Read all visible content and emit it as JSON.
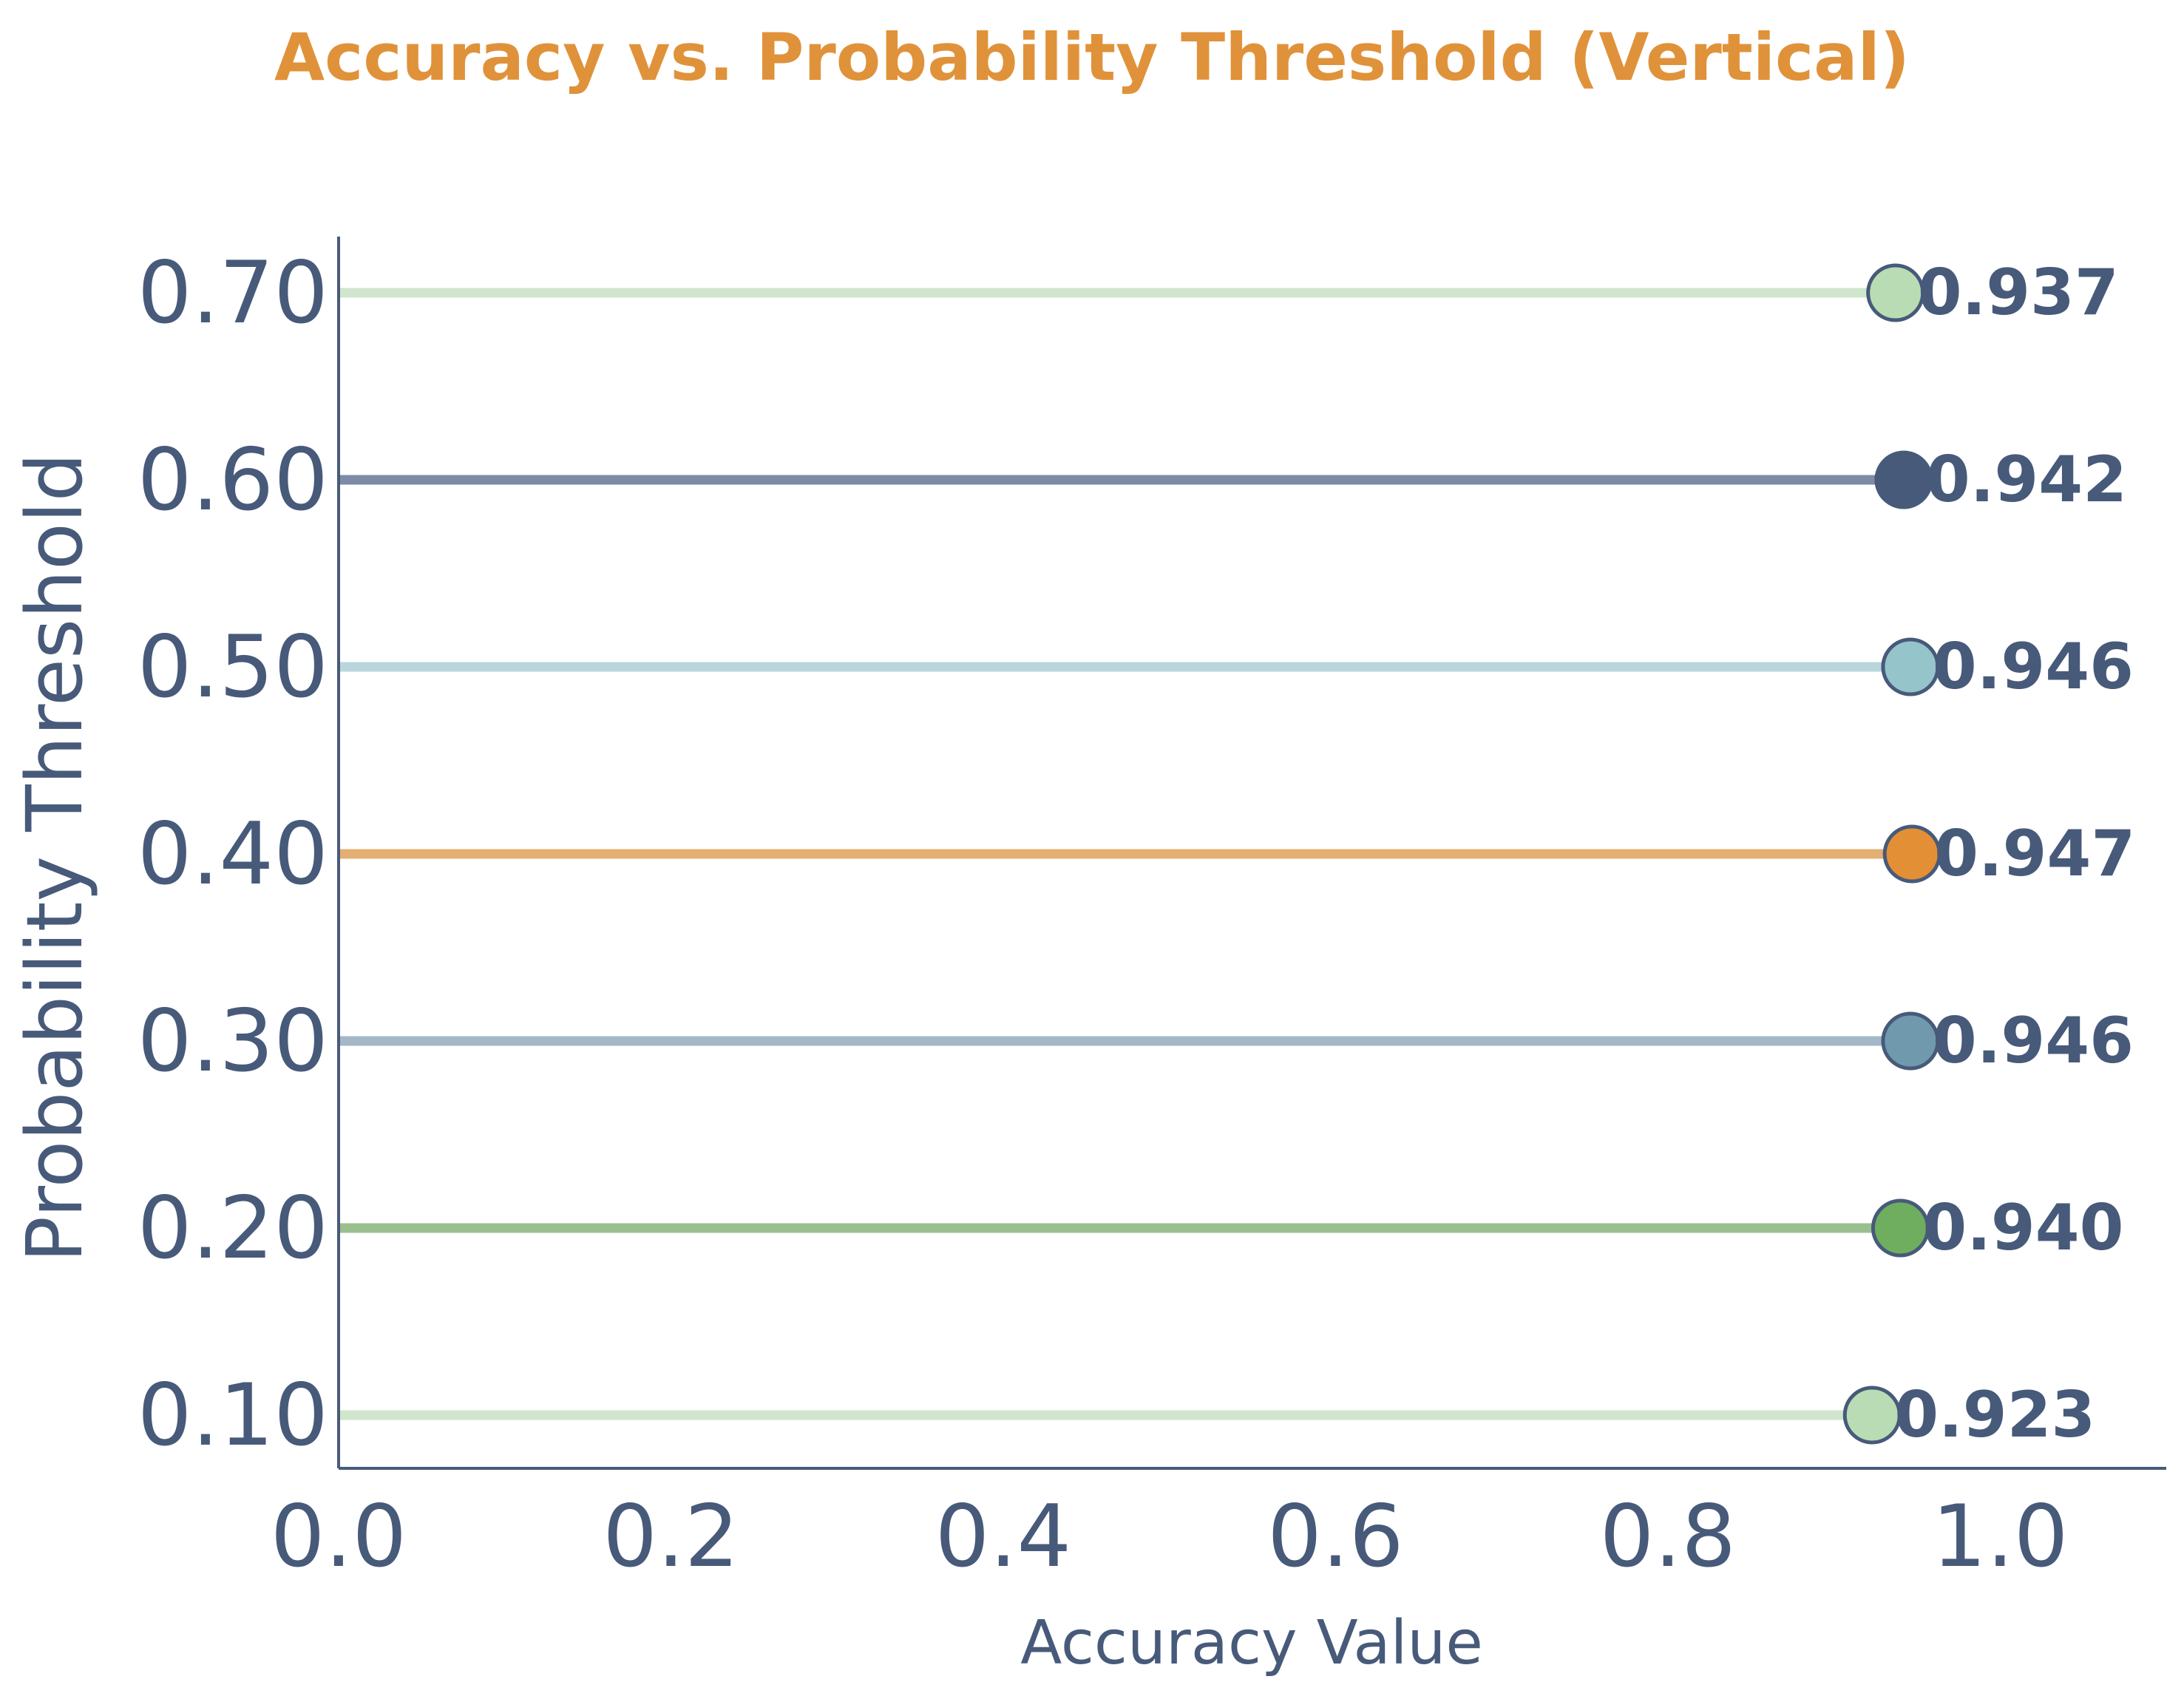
{
  "chart_data": {
    "type": "lollipop",
    "orientation": "horizontal",
    "title": "Accuracy vs. Probability Threshold (Vertical)",
    "xlabel": "Accuracy Value",
    "ylabel": "Probability Threshold",
    "xlim": [
      0.0,
      1.1
    ],
    "x_ticks": [
      "0.0",
      "0.2",
      "0.4",
      "0.6",
      "0.8",
      "1.0"
    ],
    "categories": [
      "0.10",
      "0.20",
      "0.30",
      "0.40",
      "0.50",
      "0.60",
      "0.70"
    ],
    "values": [
      0.923,
      0.94,
      0.946,
      0.947,
      0.946,
      0.942,
      0.937
    ],
    "value_labels": [
      "0.923",
      "0.940",
      "0.946",
      "0.947",
      "0.946",
      "0.942",
      "0.937"
    ],
    "grid": false,
    "legend": "none",
    "colors": {
      "title": "#E0923A",
      "text": "#475A7A",
      "axis": "#475A7A",
      "marker_edge": "#475A7A",
      "stems": [
        "#CFE6CC",
        "#9ABF8F",
        "#A3B7C9",
        "#E3AF72",
        "#BAD6DC",
        "#7C8BA6",
        "#CFE6CC"
      ],
      "markers": [
        "#BADCB4",
        "#6FAE5F",
        "#7199AE",
        "#E38F35",
        "#95C4CB",
        "#475A7A",
        "#BADCB4"
      ]
    }
  }
}
